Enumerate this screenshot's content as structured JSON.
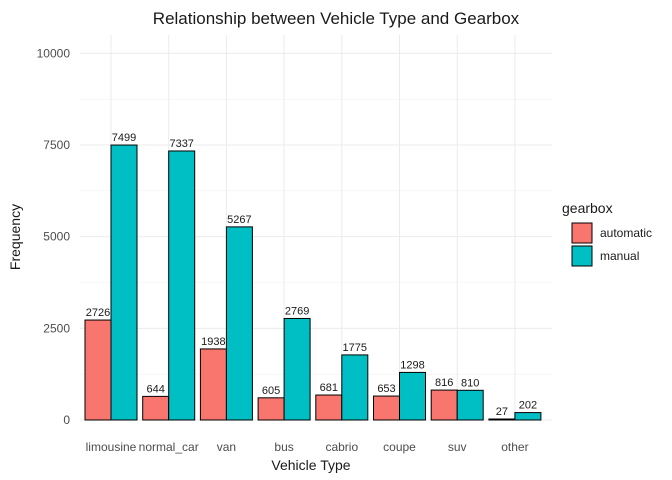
{
  "chart_data": {
    "type": "bar",
    "title": "Relationship between Vehicle Type and Gearbox",
    "xlabel": "Vehicle Type",
    "ylabel": "Frequency",
    "ylim": [
      0,
      10500
    ],
    "yticks": [
      0,
      2500,
      5000,
      7500,
      10000
    ],
    "categories": [
      "limousine",
      "normal_car",
      "van",
      "bus",
      "cabrio",
      "coupe",
      "suv",
      "other"
    ],
    "series": [
      {
        "name": "automatic",
        "color": "#F8766D",
        "values": [
          2726,
          644,
          1938,
          605,
          681,
          653,
          816,
          27
        ]
      },
      {
        "name": "manual",
        "color": "#00BFC4",
        "values": [
          7499,
          7337,
          5267,
          2769,
          1775,
          1298,
          810,
          202
        ]
      }
    ],
    "legend": {
      "title": "gearbox",
      "position": "right"
    },
    "grid": true
  }
}
